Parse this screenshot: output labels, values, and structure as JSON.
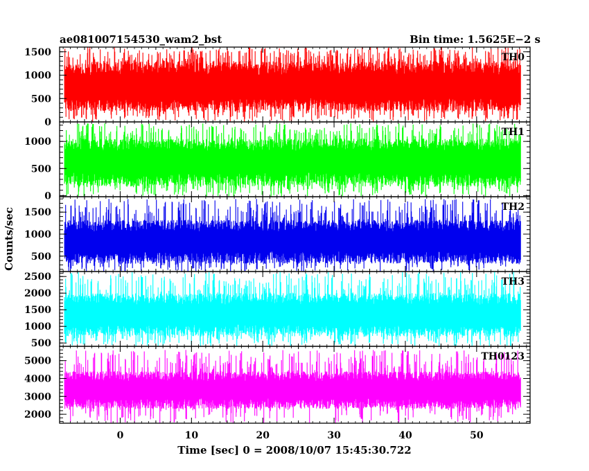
{
  "chart_data": {
    "type": "line",
    "title": "ae081007154530_wam2_bst",
    "subtitle": "Bin time: 1.5625E−2 s",
    "xlabel": "Time [sec] 0 = 2008/10/07 15:45:30.722",
    "ylabel": "Counts/sec",
    "xlim": [
      -8.5,
      57.5
    ],
    "x_ticks": [
      0,
      10,
      20,
      30,
      40,
      50
    ],
    "x_range_data": [
      -7.8,
      56.2
    ],
    "bin_time": 0.015625,
    "grid": false,
    "panels": [
      {
        "label": "TH0",
        "color": "#ff0000",
        "ylim": [
          0,
          1600
        ],
        "yticks": [
          0,
          500,
          1000,
          1500
        ],
        "mean": 700,
        "low": 230,
        "high": 1300,
        "peak": 1600
      },
      {
        "label": "TH1",
        "color": "#00ff00",
        "ylim": [
          -20,
          1360
        ],
        "yticks": [
          0,
          500,
          1000
        ],
        "mean": 600,
        "low": 170,
        "high": 1050,
        "peak": 1340
      },
      {
        "label": "TH2",
        "color": "#0000ee",
        "ylim": [
          150,
          1850
        ],
        "yticks": [
          500,
          1000,
          1500
        ],
        "mean": 800,
        "low": 330,
        "high": 1320,
        "peak": 1800
      },
      {
        "label": "TH3",
        "color": "#00ffff",
        "ylim": [
          400,
          2650
        ],
        "yticks": [
          500,
          1000,
          1500,
          2000,
          2500
        ],
        "mean": 1300,
        "low": 700,
        "high": 2000,
        "peak": 2650
      },
      {
        "label": "TH0123",
        "color": "#ff00ff",
        "ylim": [
          1500,
          5800
        ],
        "yticks": [
          2000,
          3000,
          4000,
          5000
        ],
        "mean": 3300,
        "low": 2300,
        "high": 4400,
        "peak": 5600
      }
    ]
  }
}
